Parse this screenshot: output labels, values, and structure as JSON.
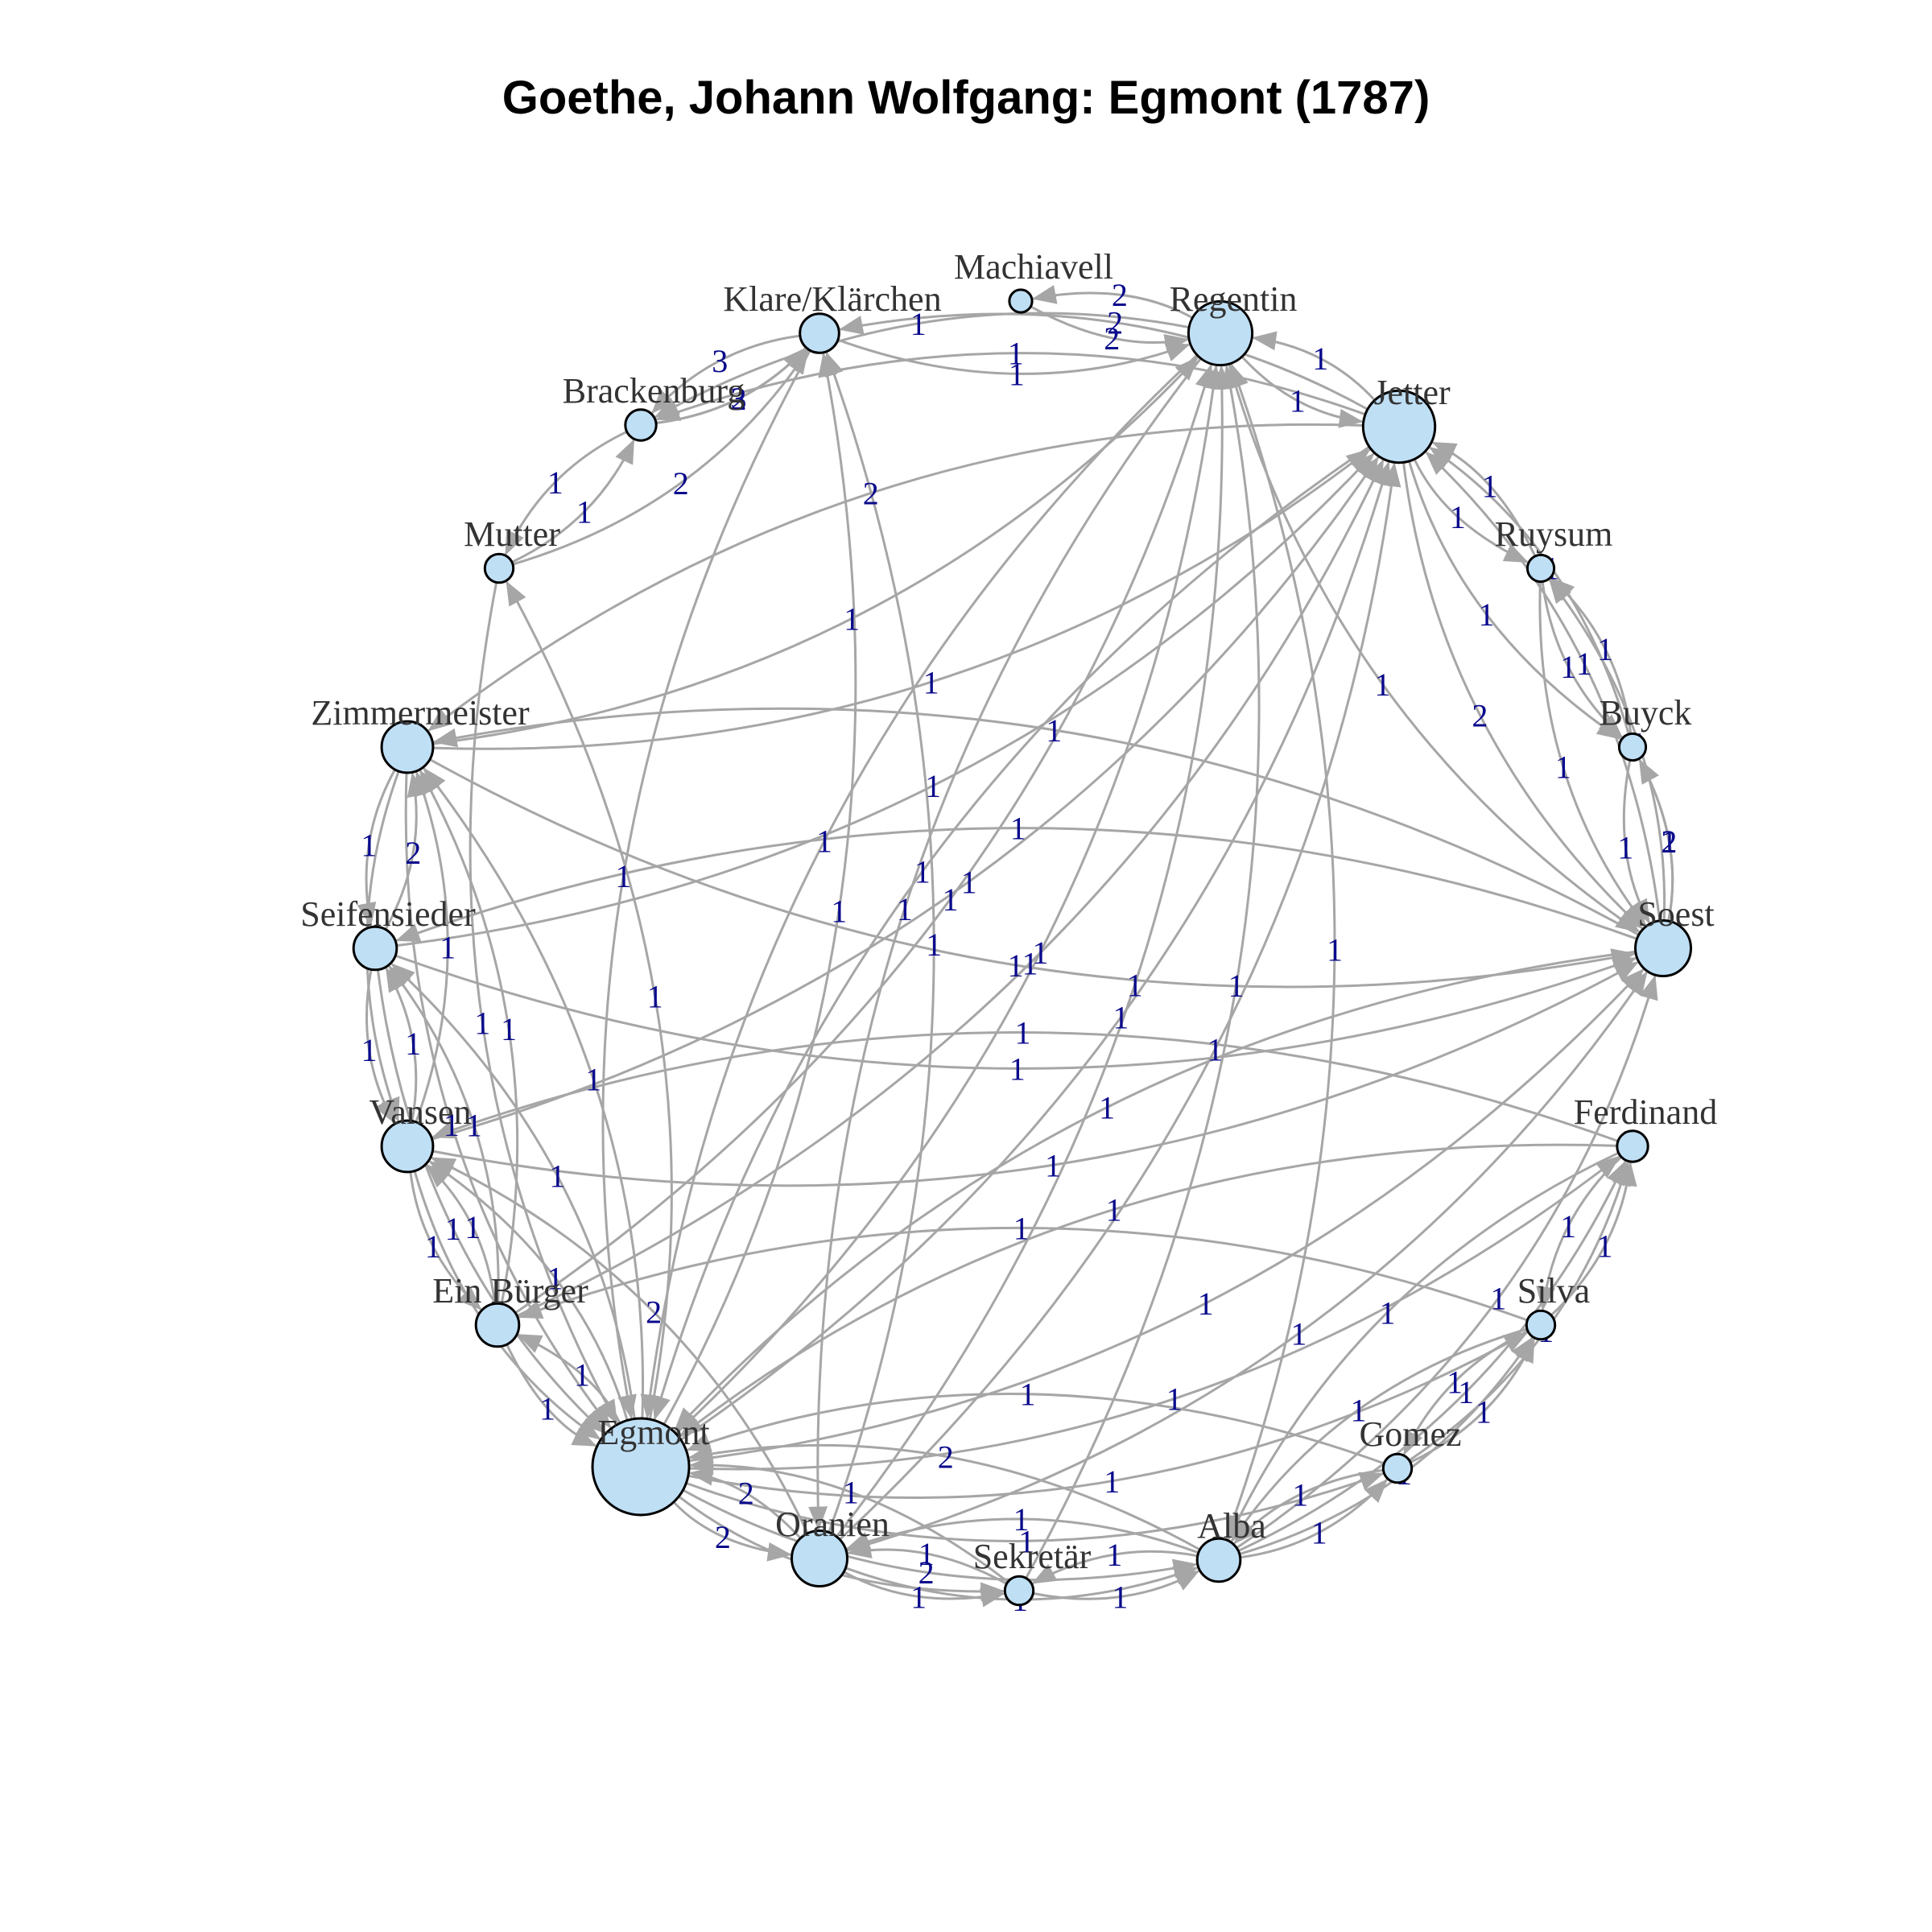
{
  "title": "Goethe, Johann Wolfgang: Egmont (1787)",
  "colors": {
    "node_fill": "#bfdff5",
    "edge": "#a6a6a6",
    "edge_label": "#0a0a8c"
  },
  "nodes": [
    {
      "id": "machiavell",
      "label": "Machiavell",
      "size": 1
    },
    {
      "id": "regentin",
      "label": "Regentin",
      "size": 6
    },
    {
      "id": "jetter",
      "label": "Jetter",
      "size": 7
    },
    {
      "id": "ruysum",
      "label": "Ruysum",
      "size": 1.5
    },
    {
      "id": "buyck",
      "label": "Buyck",
      "size": 1.5
    },
    {
      "id": "soest",
      "label": "Soest",
      "size": 5
    },
    {
      "id": "ferdinand",
      "label": "Ferdinand",
      "size": 2
    },
    {
      "id": "silva",
      "label": "Silva",
      "size": 1.7
    },
    {
      "id": "gomez",
      "label": "Gomez",
      "size": 1.7
    },
    {
      "id": "alba",
      "label": "Alba",
      "size": 3.5
    },
    {
      "id": "sekretar",
      "label": "Sekretär",
      "size": 1.7
    },
    {
      "id": "oranien",
      "label": "Oranien",
      "size": 5
    },
    {
      "id": "egmont",
      "label": "Egmont",
      "size": 10
    },
    {
      "id": "einburger",
      "label": "Ein Bürger",
      "size": 3.5
    },
    {
      "id": "vansen",
      "label": "Vansen",
      "size": 4.5
    },
    {
      "id": "seifensieder",
      "label": "Seifensieder",
      "size": 3.5
    },
    {
      "id": "zimmermeister",
      "label": "Zimmermeister",
      "size": 4.5
    },
    {
      "id": "mutter",
      "label": "Mutter",
      "size": 1.7
    },
    {
      "id": "brackenburg",
      "label": "Brackenburg",
      "size": 2
    },
    {
      "id": "klare",
      "label": "Klare/Klärchen",
      "size": 3
    }
  ],
  "edges": [
    {
      "from": "regentin",
      "to": "machiavell",
      "weight": "2"
    },
    {
      "from": "machiavell",
      "to": "regentin",
      "weight": "2"
    },
    {
      "from": "klare",
      "to": "regentin",
      "weight": "1"
    },
    {
      "from": "regentin",
      "to": "jetter",
      "weight": "1"
    },
    {
      "from": "jetter",
      "to": "regentin",
      "weight": "1"
    },
    {
      "from": "klare",
      "to": "brackenburg",
      "weight": "3"
    },
    {
      "from": "brackenburg",
      "to": "klare",
      "weight": "2"
    },
    {
      "from": "brackenburg",
      "to": "klare",
      "weight": "3"
    },
    {
      "from": "mutter",
      "to": "brackenburg",
      "weight": "1"
    },
    {
      "from": "brackenburg",
      "to": "mutter",
      "weight": "1"
    },
    {
      "from": "mutter",
      "to": "klare",
      "weight": "2"
    },
    {
      "from": "jetter",
      "to": "brackenburg",
      "weight": "1"
    },
    {
      "from": "regentin",
      "to": "brackenburg",
      "weight": "1"
    },
    {
      "from": "jetter",
      "to": "klare",
      "weight": "2"
    },
    {
      "from": "jetter",
      "to": "ruysum",
      "weight": "1"
    },
    {
      "from": "ruysum",
      "to": "jetter",
      "weight": "1"
    },
    {
      "from": "jetter",
      "to": "buyck",
      "weight": "1"
    },
    {
      "from": "buyck",
      "to": "jetter",
      "weight": "1"
    },
    {
      "from": "jetter",
      "to": "soest",
      "weight": "2"
    },
    {
      "from": "soest",
      "to": "jetter",
      "weight": "1"
    },
    {
      "from": "ruysum",
      "to": "buyck",
      "weight": "1"
    },
    {
      "from": "buyck",
      "to": "ruysum",
      "weight": "1"
    },
    {
      "from": "ruysum",
      "to": "soest",
      "weight": "1"
    },
    {
      "from": "soest",
      "to": "ruysum",
      "weight": "1"
    },
    {
      "from": "buyck",
      "to": "soest",
      "weight": "1"
    },
    {
      "from": "soest",
      "to": "buyck",
      "weight": "2"
    },
    {
      "from": "soest",
      "to": "buyck",
      "weight": "1"
    },
    {
      "from": "regentin",
      "to": "soest",
      "weight": "1"
    },
    {
      "from": "zimmermeister",
      "to": "jetter",
      "weight": "1"
    },
    {
      "from": "jetter",
      "to": "zimmermeister",
      "weight": "2"
    },
    {
      "from": "zimmermeister",
      "to": "regentin",
      "weight": "1"
    },
    {
      "from": "soest",
      "to": "zimmermeister",
      "weight": "1"
    },
    {
      "from": "zimmermeister",
      "to": "soest",
      "weight": "1"
    },
    {
      "from": "seifensieder",
      "to": "jetter",
      "weight": "1"
    },
    {
      "from": "seifensieder",
      "to": "soest",
      "weight": "1"
    },
    {
      "from": "soest",
      "to": "seifensieder",
      "weight": "1"
    },
    {
      "from": "zimmermeister",
      "to": "seifensieder",
      "weight": "1"
    },
    {
      "from": "seifensieder",
      "to": "zimmermeister",
      "weight": "2"
    },
    {
      "from": "vansen",
      "to": "zimmermeister",
      "weight": "1"
    },
    {
      "from": "zimmermeister",
      "to": "vansen",
      "weight": "1"
    },
    {
      "from": "vansen",
      "to": "seifensieder",
      "weight": "1"
    },
    {
      "from": "seifensieder",
      "to": "vansen",
      "weight": "1"
    },
    {
      "from": "vansen",
      "to": "jetter",
      "weight": "1"
    },
    {
      "from": "vansen",
      "to": "soest",
      "weight": "1"
    },
    {
      "from": "ferdinand",
      "to": "vansen",
      "weight": "1"
    },
    {
      "from": "einburger",
      "to": "vansen",
      "weight": "1"
    },
    {
      "from": "vansen",
      "to": "einburger",
      "weight": "1"
    },
    {
      "from": "einburger",
      "to": "zimmermeister",
      "weight": "1"
    },
    {
      "from": "einburger",
      "to": "seifensieder",
      "weight": "1"
    },
    {
      "from": "einburger",
      "to": "jetter",
      "weight": "1"
    },
    {
      "from": "einburger",
      "to": "regentin",
      "weight": "1"
    },
    {
      "from": "silva",
      "to": "einburger",
      "weight": "1"
    },
    {
      "from": "egmont",
      "to": "einburger",
      "weight": "1"
    },
    {
      "from": "einburger",
      "to": "egmont",
      "weight": "1"
    },
    {
      "from": "egmont",
      "to": "vansen",
      "weight": "1"
    },
    {
      "from": "vansen",
      "to": "egmont",
      "weight": "1"
    },
    {
      "from": "egmont",
      "to": "seifensieder",
      "weight": "1"
    },
    {
      "from": "egmont",
      "to": "zimmermeister",
      "weight": "1"
    },
    {
      "from": "egmont",
      "to": "jetter",
      "weight": "1"
    },
    {
      "from": "egmont",
      "to": "regentin",
      "weight": "1"
    },
    {
      "from": "egmont",
      "to": "klare",
      "weight": "1"
    },
    {
      "from": "klare",
      "to": "egmont",
      "weight": "1"
    },
    {
      "from": "egmont",
      "to": "soest",
      "weight": "1"
    },
    {
      "from": "egmont",
      "to": "oranien",
      "weight": "2"
    },
    {
      "from": "oranien",
      "to": "egmont",
      "weight": "2"
    },
    {
      "from": "egmont",
      "to": "alba",
      "weight": "2"
    },
    {
      "from": "alba",
      "to": "egmont",
      "weight": "2"
    },
    {
      "from": "egmont",
      "to": "ferdinand",
      "weight": "1"
    },
    {
      "from": "ferdinand",
      "to": "egmont",
      "weight": "1"
    },
    {
      "from": "egmont",
      "to": "silva",
      "weight": "1"
    },
    {
      "from": "egmont",
      "to": "gomez",
      "weight": "1"
    },
    {
      "from": "egmont",
      "to": "sekretar",
      "weight": "1"
    },
    {
      "from": "sekretar",
      "to": "egmont",
      "weight": "1"
    },
    {
      "from": "oranien",
      "to": "regentin",
      "weight": "1"
    },
    {
      "from": "oranien",
      "to": "jetter",
      "weight": "1"
    },
    {
      "from": "oranien",
      "to": "sekretar",
      "weight": "1"
    },
    {
      "from": "sekretar",
      "to": "oranien",
      "weight": "1"
    },
    {
      "from": "oranien",
      "to": "alba",
      "weight": "1"
    },
    {
      "from": "alba",
      "to": "oranien",
      "weight": "1"
    },
    {
      "from": "sekretar",
      "to": "alba",
      "weight": "1"
    },
    {
      "from": "alba",
      "to": "sekretar",
      "weight": "1"
    },
    {
      "from": "alba",
      "to": "gomez",
      "weight": "1"
    },
    {
      "from": "gomez",
      "to": "alba",
      "weight": "1"
    },
    {
      "from": "alba",
      "to": "silva",
      "weight": "1"
    },
    {
      "from": "silva",
      "to": "alba",
      "weight": "1"
    },
    {
      "from": "alba",
      "to": "ferdinand",
      "weight": "1"
    },
    {
      "from": "ferdinand",
      "to": "alba",
      "weight": "1"
    },
    {
      "from": "gomez",
      "to": "silva",
      "weight": "1"
    },
    {
      "from": "silva",
      "to": "gomez",
      "weight": "1"
    },
    {
      "from": "gomez",
      "to": "ferdinand",
      "weight": "1"
    },
    {
      "from": "silva",
      "to": "ferdinand",
      "weight": "1"
    },
    {
      "from": "ferdinand",
      "to": "silva",
      "weight": "1"
    },
    {
      "from": "alba",
      "to": "regentin",
      "weight": "1"
    },
    {
      "from": "alba",
      "to": "soest",
      "weight": "1"
    },
    {
      "from": "sekretar",
      "to": "regentin",
      "weight": "1"
    },
    {
      "from": "mutter",
      "to": "egmont",
      "weight": "1"
    },
    {
      "from": "egmont",
      "to": "mutter",
      "weight": "1"
    },
    {
      "from": "regentin",
      "to": "oranien",
      "weight": "1"
    },
    {
      "from": "jetter",
      "to": "egmont",
      "weight": "1"
    },
    {
      "from": "regentin",
      "to": "egmont",
      "weight": "1"
    },
    {
      "from": "soest",
      "to": "egmont",
      "weight": "1"
    },
    {
      "from": "zimmermeister",
      "to": "egmont",
      "weight": "1"
    },
    {
      "from": "seifensieder",
      "to": "egmont",
      "weight": "1"
    },
    {
      "from": "oranien",
      "to": "soest",
      "weight": "1"
    },
    {
      "from": "oranien",
      "to": "vansen",
      "weight": "2"
    },
    {
      "from": "gomez",
      "to": "egmont",
      "weight": "1"
    },
    {
      "from": "oranien",
      "to": "klare",
      "weight": "1"
    }
  ]
}
